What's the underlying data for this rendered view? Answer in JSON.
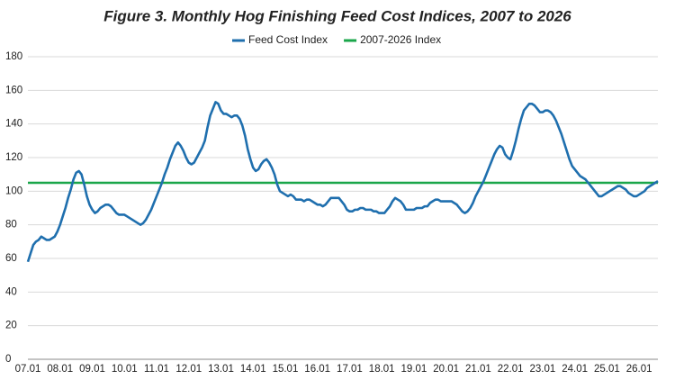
{
  "chart_data": {
    "type": "line",
    "title": "Figure 3.  Monthly Hog Finishing Feed Cost Indices, 2007 to 2026",
    "categories": [
      "07.01",
      null,
      null,
      null,
      null,
      null,
      null,
      null,
      null,
      null,
      null,
      null,
      "08.01",
      null,
      null,
      null,
      null,
      null,
      null,
      null,
      null,
      null,
      null,
      null,
      "09.01",
      null,
      null,
      null,
      null,
      null,
      null,
      null,
      null,
      null,
      null,
      null,
      "10.01",
      null,
      null,
      null,
      null,
      null,
      null,
      null,
      null,
      null,
      null,
      null,
      "11.01",
      null,
      null,
      null,
      null,
      null,
      null,
      null,
      null,
      null,
      null,
      null,
      "12.01",
      null,
      null,
      null,
      null,
      null,
      null,
      null,
      null,
      null,
      null,
      null,
      "13.01",
      null,
      null,
      null,
      null,
      null,
      null,
      null,
      null,
      null,
      null,
      null,
      "14.01",
      null,
      null,
      null,
      null,
      null,
      null,
      null,
      null,
      null,
      null,
      null,
      "15.01",
      null,
      null,
      null,
      null,
      null,
      null,
      null,
      null,
      null,
      null,
      null,
      "16.01",
      null,
      null,
      null,
      null,
      null,
      null,
      null,
      null,
      null,
      null,
      null,
      "17.01",
      null,
      null,
      null,
      null,
      null,
      null,
      null,
      null,
      null,
      null,
      null,
      "18.01",
      null,
      null,
      null,
      null,
      null,
      null,
      null,
      null,
      null,
      null,
      null,
      "19.01",
      null,
      null,
      null,
      null,
      null,
      null,
      null,
      null,
      null,
      null,
      null,
      "20.01",
      null,
      null,
      null,
      null,
      null,
      null,
      null,
      null,
      null,
      null,
      null,
      "21.01",
      null,
      null,
      null,
      null,
      null,
      null,
      null,
      null,
      null,
      null,
      null,
      "22.01",
      null,
      null,
      null,
      null,
      null,
      null,
      null,
      null,
      null,
      null,
      null,
      "23.01",
      null,
      null,
      null,
      null,
      null,
      null,
      null,
      null,
      null,
      null,
      null,
      "24.01",
      null,
      null,
      null,
      null,
      null,
      null,
      null,
      null,
      null,
      null,
      null,
      "25.01",
      null,
      null,
      null,
      null,
      null,
      null,
      null,
      null,
      null,
      null,
      null,
      "26.01",
      null,
      null,
      null,
      null,
      null,
      null,
      null
    ],
    "series": [
      {
        "name": "Feed Cost Index",
        "color": "#1f6fae",
        "values": [
          58,
          63,
          68,
          70,
          71,
          73,
          72,
          71,
          71,
          72,
          73,
          76,
          80,
          85,
          90,
          96,
          101,
          107,
          111,
          112,
          110,
          104,
          97,
          92,
          89,
          87,
          88,
          90,
          91,
          92,
          92,
          91,
          89,
          87,
          86,
          86,
          86,
          85,
          84,
          83,
          82,
          81,
          80,
          81,
          83,
          86,
          89,
          93,
          97,
          101,
          105,
          110,
          114,
          119,
          123,
          127,
          129,
          127,
          124,
          120,
          117,
          116,
          117,
          120,
          123,
          126,
          130,
          138,
          145,
          149,
          153,
          152,
          148,
          146,
          146,
          145,
          144,
          145,
          145,
          143,
          139,
          133,
          125,
          119,
          114,
          112,
          113,
          116,
          118,
          119,
          117,
          114,
          110,
          104,
          100,
          99,
          98,
          97,
          98,
          97,
          95,
          95,
          95,
          94,
          95,
          95,
          94,
          93,
          92,
          92,
          91,
          92,
          94,
          96,
          96,
          96,
          96,
          94,
          92,
          89,
          88,
          88,
          89,
          89,
          90,
          90,
          89,
          89,
          89,
          88,
          88,
          87,
          87,
          87,
          89,
          91,
          94,
          96,
          95,
          94,
          92,
          89,
          89,
          89,
          89,
          90,
          90,
          90,
          91,
          91,
          93,
          94,
          95,
          95,
          94,
          94,
          94,
          94,
          94,
          93,
          92,
          90,
          88,
          87,
          88,
          90,
          93,
          97,
          100,
          103,
          106,
          110,
          114,
          118,
          122,
          125,
          127,
          126,
          122,
          120,
          119,
          124,
          130,
          137,
          143,
          148,
          150,
          152,
          152,
          151,
          149,
          147,
          147,
          148,
          148,
          147,
          145,
          142,
          138,
          134,
          129,
          124,
          119,
          115,
          113,
          111,
          109,
          108,
          107,
          105,
          103,
          101,
          99,
          97,
          97,
          98,
          99,
          100,
          101,
          102,
          103,
          103,
          102,
          101,
          99,
          98,
          97,
          97,
          98,
          99,
          100,
          102,
          103,
          104,
          105,
          106
        ]
      }
    ],
    "reference_line": {
      "name": "2007-2026 Index",
      "color": "#1aa64a",
      "value": 105
    },
    "ylim": [
      0,
      180
    ],
    "yticks": [
      0,
      20,
      40,
      60,
      80,
      100,
      120,
      140,
      160,
      180
    ],
    "grid": true
  }
}
